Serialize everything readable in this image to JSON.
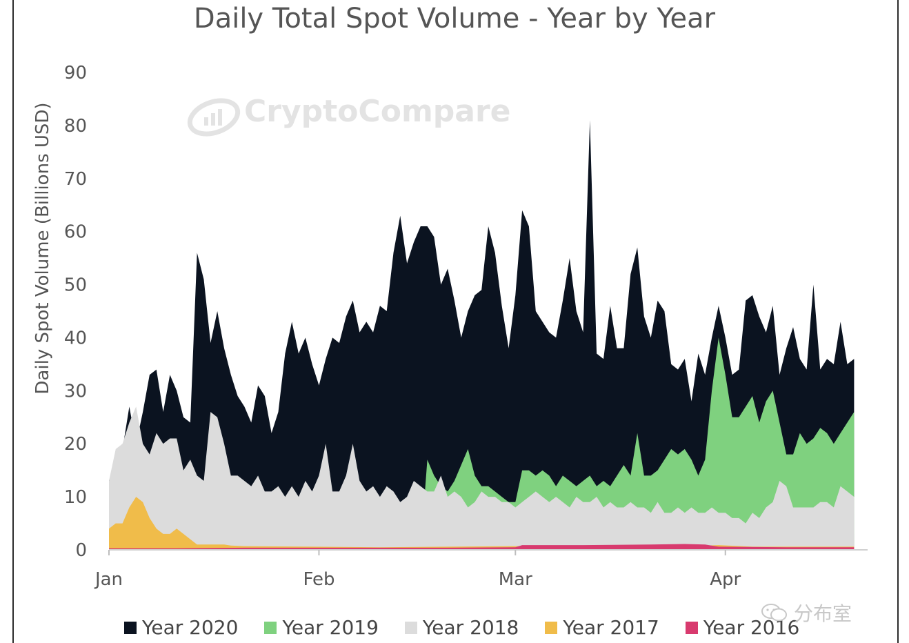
{
  "chart_data": {
    "type": "area",
    "title": "Daily Total Spot Volume - Year by Year",
    "ylabel": "Daily Spot Volume (Billions USD)",
    "xlabel": "",
    "ylim": [
      0,
      90
    ],
    "yticks": [
      0,
      10,
      20,
      30,
      40,
      50,
      60,
      70,
      80,
      90
    ],
    "x_tick_labels": [
      {
        "label": "Jan",
        "day": 0
      },
      {
        "label": "Feb",
        "day": 31
      },
      {
        "label": "Mar",
        "day": 60
      },
      {
        "label": "Apr",
        "day": 91
      }
    ],
    "x_range_days": [
      0,
      112
    ],
    "series": [
      {
        "name": "Year 2020",
        "color": "#0b1320",
        "points": [
          [
            0,
            13
          ],
          [
            1,
            17
          ],
          [
            2,
            19
          ],
          [
            3,
            27
          ],
          [
            4,
            20
          ],
          [
            5,
            26
          ],
          [
            6,
            33
          ],
          [
            7,
            34
          ],
          [
            8,
            26
          ],
          [
            9,
            33
          ],
          [
            10,
            30
          ],
          [
            11,
            25
          ],
          [
            12,
            24
          ],
          [
            13,
            56
          ],
          [
            14,
            51
          ],
          [
            15,
            39
          ],
          [
            16,
            45
          ],
          [
            17,
            38
          ],
          [
            18,
            33
          ],
          [
            19,
            29
          ],
          [
            20,
            27
          ],
          [
            21,
            24
          ],
          [
            22,
            31
          ],
          [
            23,
            29
          ],
          [
            24,
            22
          ],
          [
            25,
            26
          ],
          [
            26,
            37
          ],
          [
            27,
            43
          ],
          [
            28,
            37
          ],
          [
            29,
            40
          ],
          [
            30,
            35
          ],
          [
            31,
            31
          ],
          [
            32,
            36
          ],
          [
            33,
            40
          ],
          [
            34,
            39
          ],
          [
            35,
            44
          ],
          [
            36,
            47
          ],
          [
            37,
            41
          ],
          [
            38,
            43
          ],
          [
            39,
            41
          ],
          [
            40,
            46
          ],
          [
            41,
            45
          ],
          [
            42,
            56
          ],
          [
            43,
            63
          ],
          [
            44,
            54
          ],
          [
            45,
            58
          ],
          [
            46,
            61
          ],
          [
            47,
            61
          ],
          [
            48,
            59
          ],
          [
            49,
            50
          ],
          [
            50,
            53
          ],
          [
            51,
            47
          ],
          [
            52,
            40
          ],
          [
            53,
            45
          ],
          [
            54,
            48
          ],
          [
            55,
            49
          ],
          [
            56,
            61
          ],
          [
            57,
            56
          ],
          [
            58,
            46
          ],
          [
            59,
            38
          ],
          [
            60,
            48
          ],
          [
            61,
            64
          ],
          [
            62,
            61
          ],
          [
            63,
            45
          ],
          [
            64,
            43
          ],
          [
            65,
            41
          ],
          [
            66,
            40
          ],
          [
            67,
            47
          ],
          [
            68,
            55
          ],
          [
            69,
            45
          ],
          [
            70,
            41
          ],
          [
            71,
            81
          ],
          [
            72,
            37
          ],
          [
            73,
            36
          ],
          [
            74,
            46
          ],
          [
            75,
            38
          ],
          [
            76,
            38
          ],
          [
            77,
            52
          ],
          [
            78,
            57
          ],
          [
            79,
            44
          ],
          [
            80,
            40
          ],
          [
            81,
            47
          ],
          [
            82,
            45
          ],
          [
            83,
            35
          ],
          [
            84,
            34
          ],
          [
            85,
            36
          ],
          [
            86,
            28
          ],
          [
            87,
            37
          ],
          [
            88,
            33
          ],
          [
            89,
            40
          ],
          [
            90,
            46
          ],
          [
            91,
            40
          ],
          [
            92,
            33
          ],
          [
            93,
            34
          ],
          [
            94,
            47
          ],
          [
            95,
            48
          ],
          [
            96,
            44
          ],
          [
            97,
            41
          ],
          [
            98,
            46
          ],
          [
            99,
            33
          ],
          [
            100,
            38
          ],
          [
            101,
            42
          ],
          [
            102,
            36
          ],
          [
            103,
            34
          ],
          [
            104,
            50
          ],
          [
            105,
            34
          ],
          [
            106,
            36
          ],
          [
            107,
            35
          ],
          [
            108,
            43
          ],
          [
            109,
            35
          ],
          [
            110,
            36
          ]
        ]
      },
      {
        "name": "Year 2019",
        "color": "#7fd17f",
        "points": [
          [
            0,
            0
          ],
          [
            46,
            0
          ],
          [
            47,
            17
          ],
          [
            48,
            14
          ],
          [
            49,
            12
          ],
          [
            50,
            11
          ],
          [
            51,
            13
          ],
          [
            52,
            16
          ],
          [
            53,
            19
          ],
          [
            54,
            14
          ],
          [
            55,
            12
          ],
          [
            56,
            12
          ],
          [
            57,
            11
          ],
          [
            58,
            10
          ],
          [
            59,
            9
          ],
          [
            60,
            9
          ],
          [
            61,
            15
          ],
          [
            62,
            15
          ],
          [
            63,
            14
          ],
          [
            64,
            15
          ],
          [
            65,
            14
          ],
          [
            66,
            12
          ],
          [
            67,
            14
          ],
          [
            68,
            13
          ],
          [
            69,
            12
          ],
          [
            70,
            13
          ],
          [
            71,
            14
          ],
          [
            72,
            12
          ],
          [
            73,
            13
          ],
          [
            74,
            12
          ],
          [
            75,
            14
          ],
          [
            76,
            16
          ],
          [
            77,
            14
          ],
          [
            78,
            22
          ],
          [
            79,
            14
          ],
          [
            80,
            14
          ],
          [
            81,
            15
          ],
          [
            82,
            17
          ],
          [
            83,
            19
          ],
          [
            84,
            18
          ],
          [
            85,
            19
          ],
          [
            86,
            17
          ],
          [
            87,
            14
          ],
          [
            88,
            17
          ],
          [
            89,
            30
          ],
          [
            90,
            40
          ],
          [
            91,
            33
          ],
          [
            92,
            25
          ],
          [
            93,
            25
          ],
          [
            94,
            27
          ],
          [
            95,
            29
          ],
          [
            96,
            24
          ],
          [
            97,
            28
          ],
          [
            98,
            30
          ],
          [
            99,
            24
          ],
          [
            100,
            18
          ],
          [
            101,
            18
          ],
          [
            102,
            22
          ],
          [
            103,
            20
          ],
          [
            104,
            21
          ],
          [
            105,
            23
          ],
          [
            106,
            22
          ],
          [
            107,
            20
          ],
          [
            108,
            22
          ],
          [
            109,
            24
          ],
          [
            110,
            26
          ]
        ]
      },
      {
        "name": "Year 2018",
        "color": "#dcdcdc",
        "points": [
          [
            0,
            13
          ],
          [
            1,
            19
          ],
          [
            2,
            20
          ],
          [
            3,
            24
          ],
          [
            4,
            27
          ],
          [
            5,
            20
          ],
          [
            6,
            18
          ],
          [
            7,
            22
          ],
          [
            8,
            20
          ],
          [
            9,
            21
          ],
          [
            10,
            21
          ],
          [
            11,
            15
          ],
          [
            12,
            17
          ],
          [
            13,
            14
          ],
          [
            14,
            13
          ],
          [
            15,
            26
          ],
          [
            16,
            25
          ],
          [
            17,
            20
          ],
          [
            18,
            14
          ],
          [
            19,
            14
          ],
          [
            20,
            13
          ],
          [
            21,
            12
          ],
          [
            22,
            14
          ],
          [
            23,
            11
          ],
          [
            24,
            11
          ],
          [
            25,
            12
          ],
          [
            26,
            10
          ],
          [
            27,
            12
          ],
          [
            28,
            10
          ],
          [
            29,
            13
          ],
          [
            30,
            11
          ],
          [
            31,
            14
          ],
          [
            32,
            20
          ],
          [
            33,
            11
          ],
          [
            34,
            11
          ],
          [
            35,
            14
          ],
          [
            36,
            20
          ],
          [
            37,
            13
          ],
          [
            38,
            11
          ],
          [
            39,
            12
          ],
          [
            40,
            10
          ],
          [
            41,
            12
          ],
          [
            42,
            11
          ],
          [
            43,
            9
          ],
          [
            44,
            10
          ],
          [
            45,
            13
          ],
          [
            46,
            12
          ],
          [
            47,
            11
          ],
          [
            48,
            11
          ],
          [
            49,
            14
          ],
          [
            50,
            10
          ],
          [
            51,
            11
          ],
          [
            52,
            10
          ],
          [
            53,
            8
          ],
          [
            54,
            9
          ],
          [
            55,
            11
          ],
          [
            56,
            10
          ],
          [
            57,
            10
          ],
          [
            58,
            9
          ],
          [
            59,
            9
          ],
          [
            60,
            8
          ],
          [
            61,
            9
          ],
          [
            62,
            10
          ],
          [
            63,
            11
          ],
          [
            64,
            10
          ],
          [
            65,
            9
          ],
          [
            66,
            10
          ],
          [
            67,
            9
          ],
          [
            68,
            8
          ],
          [
            69,
            10
          ],
          [
            70,
            9
          ],
          [
            71,
            9
          ],
          [
            72,
            10
          ],
          [
            73,
            8
          ],
          [
            74,
            9
          ],
          [
            75,
            8
          ],
          [
            76,
            8
          ],
          [
            77,
            9
          ],
          [
            78,
            8
          ],
          [
            79,
            8
          ],
          [
            80,
            7
          ],
          [
            81,
            9
          ],
          [
            82,
            7
          ],
          [
            83,
            7
          ],
          [
            84,
            8
          ],
          [
            85,
            7
          ],
          [
            86,
            8
          ],
          [
            87,
            7
          ],
          [
            88,
            7
          ],
          [
            89,
            8
          ],
          [
            90,
            7
          ],
          [
            91,
            7
          ],
          [
            92,
            6
          ],
          [
            93,
            6
          ],
          [
            94,
            5
          ],
          [
            95,
            7
          ],
          [
            96,
            6
          ],
          [
            97,
            8
          ],
          [
            98,
            9
          ],
          [
            99,
            13
          ],
          [
            100,
            12
          ],
          [
            101,
            8
          ],
          [
            102,
            8
          ],
          [
            103,
            8
          ],
          [
            104,
            8
          ],
          [
            105,
            9
          ],
          [
            106,
            9
          ],
          [
            107,
            8
          ],
          [
            108,
            12
          ],
          [
            109,
            11
          ],
          [
            110,
            10
          ]
        ]
      },
      {
        "name": "Year 2017",
        "color": "#f0bc4a",
        "points": [
          [
            0,
            4
          ],
          [
            1,
            5
          ],
          [
            2,
            5
          ],
          [
            3,
            8
          ],
          [
            4,
            10
          ],
          [
            5,
            9
          ],
          [
            6,
            6
          ],
          [
            7,
            4
          ],
          [
            8,
            3
          ],
          [
            9,
            3
          ],
          [
            10,
            4
          ],
          [
            11,
            3
          ],
          [
            12,
            2
          ],
          [
            13,
            1
          ],
          [
            14,
            1
          ],
          [
            15,
            1
          ],
          [
            16,
            1
          ],
          [
            17,
            1
          ],
          [
            18,
            0.8
          ],
          [
            20,
            0.7
          ],
          [
            30,
            0.6
          ],
          [
            40,
            0.5
          ],
          [
            60,
            0.7
          ],
          [
            80,
            0.8
          ],
          [
            88,
            0.8
          ],
          [
            90,
            0.9
          ],
          [
            95,
            0.6
          ],
          [
            110,
            0.6
          ]
        ]
      },
      {
        "name": "Year 2016",
        "color": "#d83a6e",
        "points": [
          [
            0,
            0.3
          ],
          [
            10,
            0.3
          ],
          [
            20,
            0.4
          ],
          [
            30,
            0.4
          ],
          [
            40,
            0.4
          ],
          [
            50,
            0.4
          ],
          [
            60,
            0.5
          ],
          [
            61,
            0.9
          ],
          [
            70,
            0.9
          ],
          [
            80,
            1
          ],
          [
            85,
            1.1
          ],
          [
            88,
            1
          ],
          [
            90,
            0.6
          ],
          [
            100,
            0.5
          ],
          [
            110,
            0.5
          ]
        ]
      }
    ],
    "legend_position": "bottom",
    "grid": false
  },
  "watermark_text": "CryptoCompare",
  "wechat_text": "分布室"
}
